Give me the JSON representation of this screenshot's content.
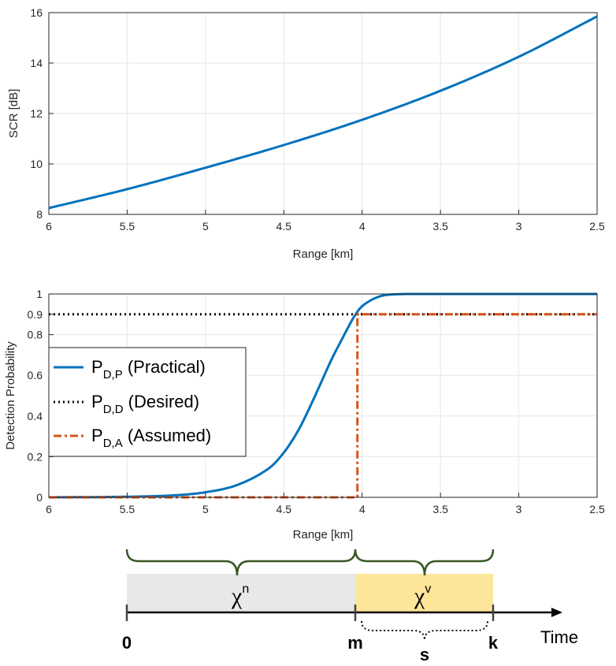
{
  "chart_data": [
    {
      "type": "line",
      "title": "",
      "xlabel": "Range [km]",
      "ylabel": "SCR [dB]",
      "xlim": [
        6,
        2.5
      ],
      "x_reversed": true,
      "ylim": [
        8,
        16
      ],
      "xticks": [
        "6",
        "5.5",
        "5",
        "4.5",
        "4",
        "3.5",
        "3",
        "2.5"
      ],
      "yticks": [
        "8",
        "10",
        "12",
        "14",
        "16"
      ],
      "grid": true,
      "series": [
        {
          "color": "#0072bd",
          "x": [
            6,
            5.5,
            5,
            4.5,
            4,
            3.5,
            3,
            2.5
          ],
          "y": [
            8.25,
            9.0,
            9.85,
            10.75,
            11.75,
            12.9,
            14.25,
            15.85
          ]
        }
      ]
    },
    {
      "type": "line",
      "title": "",
      "xlabel": "Range [km]",
      "ylabel": "Detection Probability",
      "xlim": [
        6,
        2.5
      ],
      "x_reversed": true,
      "ylim": [
        0,
        1
      ],
      "xticks": [
        "6",
        "5.5",
        "5",
        "4.5",
        "4",
        "3.5",
        "3",
        "2.5"
      ],
      "yticks": [
        "0",
        "0.2",
        "0.4",
        "0.6",
        "0.8",
        "0.9",
        "1"
      ],
      "grid": true,
      "legend_position": "left",
      "series": [
        {
          "name": "P_{D,P} (Practical)",
          "legend_main": "P",
          "legend_sub": "D,P",
          "legend_rest": " (Practical)",
          "style": "solid",
          "color": "#0072bd",
          "x": [
            6,
            5.5,
            5.2,
            5,
            4.8,
            4.6,
            4.5,
            4.4,
            4.3,
            4.2,
            4.1,
            4.05,
            4,
            3.9,
            3.8,
            3.5,
            3,
            2.5
          ],
          "y": [
            0,
            0.003,
            0.01,
            0.025,
            0.06,
            0.14,
            0.22,
            0.34,
            0.5,
            0.67,
            0.82,
            0.89,
            0.94,
            0.985,
            0.998,
            1,
            1,
            1
          ]
        },
        {
          "name": "P_{D,D} (Desired)",
          "legend_main": "P",
          "legend_sub": "D,D",
          "legend_rest": " (Desired)",
          "style": "dotted",
          "color": "#000000",
          "x": [
            6,
            2.5
          ],
          "y": [
            0.9,
            0.9
          ]
        },
        {
          "name": "P_{D,A} (Assumed)",
          "legend_main": "P",
          "legend_sub": "D,A",
          "legend_rest": " (Assumed)",
          "style": "dashdot",
          "color": "#d95319",
          "x": [
            6,
            4.03,
            4.03,
            2.5
          ],
          "y": [
            0,
            0,
            0.9,
            0.9
          ]
        }
      ]
    }
  ],
  "timeline": {
    "segment_n": {
      "symbol": "χ",
      "sup": "n",
      "color": "#e8e8e8"
    },
    "segment_v": {
      "symbol": "χ",
      "sup": "v",
      "color": "#fde59a"
    },
    "brace_color": "#385723",
    "marks": [
      "0",
      "m",
      "k"
    ],
    "span_label": "s",
    "axis_label": "Time"
  }
}
